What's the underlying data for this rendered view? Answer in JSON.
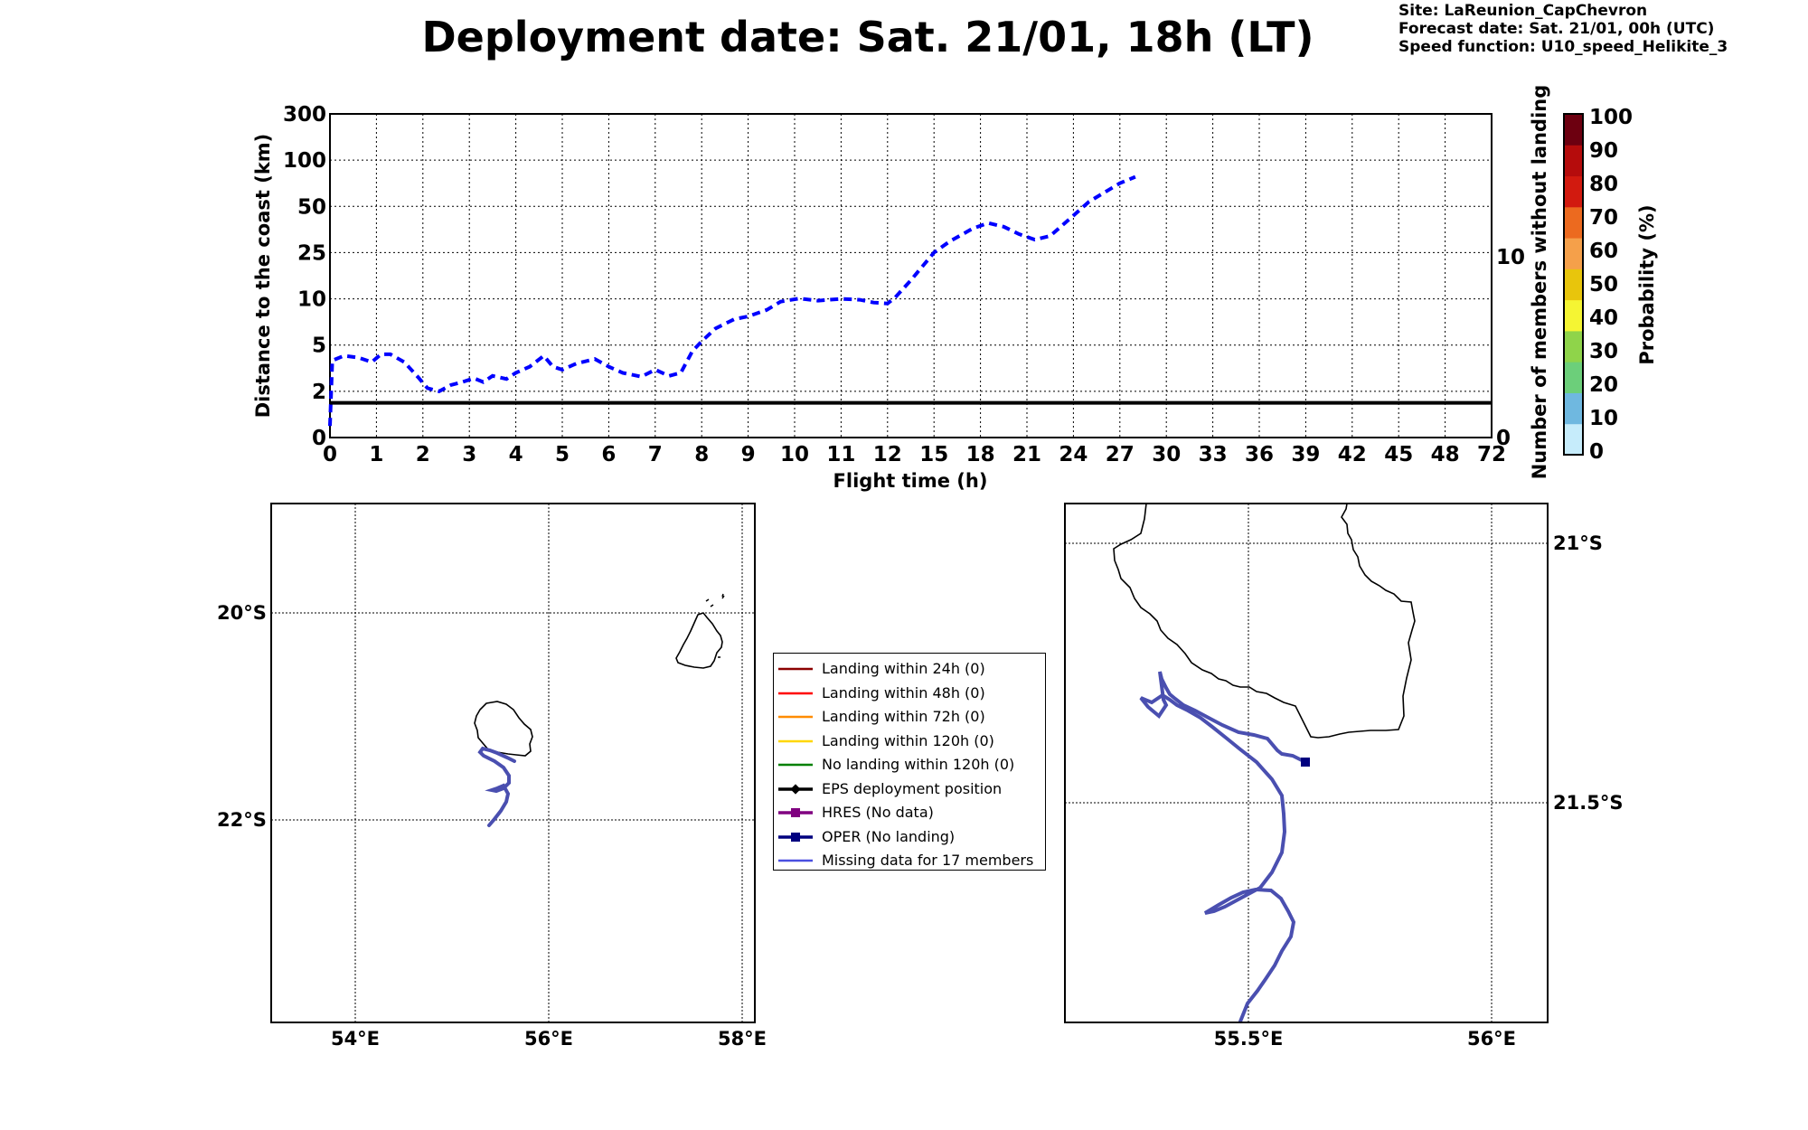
{
  "title": "Deployment date: Sat. 21/01, 18h (LT)",
  "info": {
    "site": "Site: LaReunion_CapChevron",
    "forecast": "Forecast date: Sat. 21/01, 00h (UTC)",
    "speed": "Speed function: U10_speed_Helikite_3"
  },
  "colors": {
    "distance_line": "#0000ff",
    "threshold_line": "#000000",
    "track": "#4a4fb0",
    "coast": "#000000",
    "grid": "#000000"
  },
  "chart_data": [
    {
      "type": "line",
      "xlabel": "Flight time (h)",
      "ylabel": "Distance to the coast (km)",
      "y2label": "Number of members without landing",
      "x_ticks": [
        "0",
        "1",
        "2",
        "3",
        "4",
        "5",
        "6",
        "7",
        "8",
        "9",
        "10",
        "11",
        "12",
        "15",
        "18",
        "21",
        "24",
        "27",
        "30",
        "33",
        "36",
        "39",
        "42",
        "45",
        "48",
        "72"
      ],
      "y_ticks": [
        "0",
        "2",
        "5",
        "10",
        "25",
        "50",
        "100",
        "300"
      ],
      "y2_ticks": [
        "0",
        "10"
      ],
      "grid": true,
      "series": [
        {
          "style": "dashed",
          "x": [
            0,
            0.05,
            0.3,
            0.6,
            0.9,
            1.1,
            1.3,
            1.6,
            1.9,
            2.1,
            2.35,
            2.6,
            2.85,
            3.1,
            3.3,
            3.5,
            3.8,
            4.0,
            4.3,
            4.6,
            4.8,
            5.0,
            5.3,
            5.7,
            6.0,
            6.3,
            6.7,
            7.0,
            7.3,
            7.55,
            7.8,
            8.0,
            8.3,
            8.7,
            9.0,
            9.4,
            9.7,
            10.1,
            10.5,
            11.0,
            11.4,
            11.7,
            12.0,
            12.5,
            13.5,
            15.0,
            16.0,
            17.5,
            18.5,
            19.5,
            20.5,
            21.5,
            22.5,
            24.0,
            25.0,
            26.0,
            27.0,
            28.0
          ],
          "y": [
            0.5,
            4.0,
            4.3,
            4.2,
            3.9,
            4.4,
            4.4,
            3.9,
            2.9,
            2.2,
            2.0,
            2.4,
            2.6,
            2.85,
            2.6,
            3.0,
            2.8,
            3.2,
            3.6,
            4.3,
            3.6,
            3.4,
            3.8,
            4.1,
            3.6,
            3.2,
            2.95,
            3.4,
            3.0,
            3.2,
            4.6,
            5.4,
            6.8,
            7.8,
            8.1,
            8.8,
            9.7,
            10.1,
            9.8,
            10.0,
            9.9,
            9.6,
            9.5,
            10.5,
            16.0,
            25.0,
            31.0,
            38.0,
            41.0,
            39.0,
            35.0,
            32.0,
            34.0,
            45.0,
            55.0,
            65.0,
            75.0,
            82.0
          ]
        },
        {
          "style": "solid",
          "y": 1.5
        }
      ]
    },
    {
      "type": "heatmap",
      "ylabel": "Probability (%)",
      "ticks": [
        "0",
        "10",
        "20",
        "30",
        "40",
        "50",
        "60",
        "70",
        "80",
        "90",
        "100"
      ],
      "colors": [
        "#c6ecfb",
        "#6fb8e0",
        "#6ccf7a",
        "#8fd44a",
        "#f5f533",
        "#e8c50c",
        "#f5a04a",
        "#ec6a1f",
        "#d21a0f",
        "#b50c0c",
        "#6d0010"
      ]
    }
  ],
  "maps": {
    "left": {
      "lat_labels": [
        "20°S",
        "22°S"
      ],
      "lon_labels": [
        "54°E",
        "56°E",
        "58°E"
      ]
    },
    "right": {
      "lat_labels": [
        "21°S",
        "21.5°S"
      ],
      "lon_labels": [
        "55.5°E",
        "56°E"
      ]
    }
  },
  "legend": [
    {
      "label": "Landing within 24h (0)",
      "color": "#8b0000",
      "marker": "none"
    },
    {
      "label": "Landing within 48h (0)",
      "color": "#ff0000",
      "marker": "none"
    },
    {
      "label": "Landing within 72h (0)",
      "color": "#ff8c00",
      "marker": "none"
    },
    {
      "label": "Landing within 120h (0)",
      "color": "#ffd700",
      "marker": "none"
    },
    {
      "label": "No landing within 120h (0)",
      "color": "#008000",
      "marker": "none"
    },
    {
      "label": "EPS deployment position",
      "color": "#000000",
      "marker": "diamond"
    },
    {
      "label": "HRES (No data)",
      "color": "#800080",
      "marker": "square"
    },
    {
      "label": "OPER (No landing)",
      "color": "#00007f",
      "marker": "square"
    },
    {
      "label": "Missing data for 17 members",
      "color": "#4a4fe0",
      "marker": "none"
    }
  ]
}
